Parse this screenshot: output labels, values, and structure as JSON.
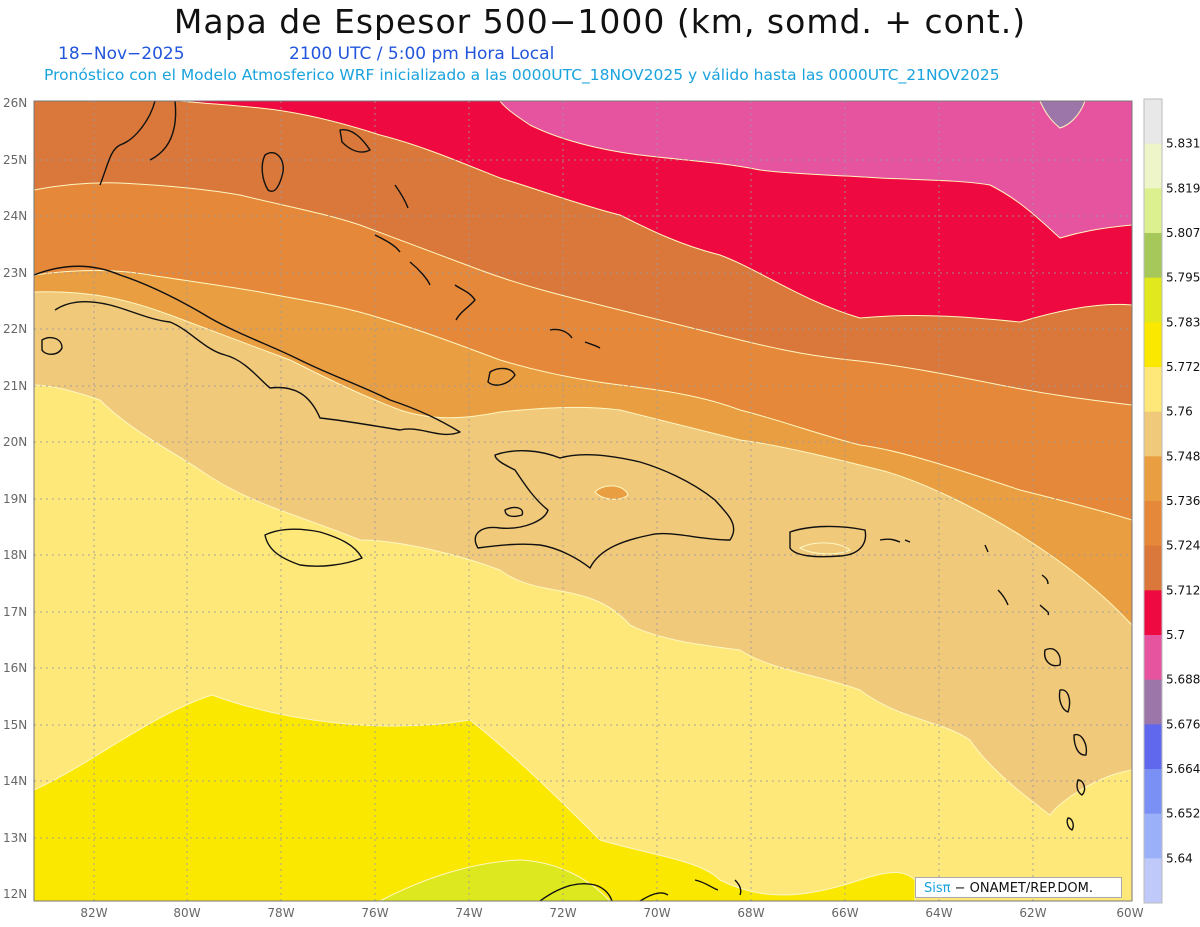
{
  "header": {
    "title": "Mapa de Espesor 500−1000 (km, somd. + cont.)",
    "date": "18−Nov−2025",
    "time": "2100 UTC / 5:00 pm Hora Local",
    "description": "Pronóstico con el Modelo Atmosferico WRF inicializado a las 0000UTC_18NOV2025 y válido hasta las  0000UTC_21NOV2025"
  },
  "axes": {
    "lat_labels": [
      "26N",
      "25N",
      "24N",
      "23N",
      "22N",
      "21N",
      "20N",
      "19N",
      "18N",
      "17N",
      "16N",
      "15N",
      "14N",
      "13N",
      "12N"
    ],
    "lon_labels": [
      "82W",
      "80W",
      "78W",
      "76W",
      "74W",
      "72W",
      "70W",
      "68W",
      "66W",
      "64W",
      "62W",
      "60W"
    ]
  },
  "legend": {
    "levels": [
      "5.831",
      "5.819",
      "5.807",
      "5.795",
      "5.783",
      "5.772",
      "5.76",
      "5.748",
      "5.736",
      "5.724",
      "5.712",
      "5.7",
      "5.688",
      "5.676",
      "5.664",
      "5.652",
      "5.64"
    ],
    "colors": [
      "#e8e8e8",
      "#eef5c8",
      "#ddf090",
      "#a6c85a",
      "#e2e81e",
      "#fae800",
      "#fee87a",
      "#f0c97a",
      "#ea9e42",
      "#e6883a",
      "#d9783a",
      "#ee0a40",
      "#e654a0",
      "#9c76a8",
      "#6068ee",
      "#7a90f4",
      "#9ab0f8",
      "#bfcafa"
    ]
  },
  "credit": {
    "brand": "Sisπ",
    "text": " − ONAMET/REP.DOM."
  },
  "colors": {
    "c_5640": "#fae800",
    "c_5652": "#dde81e",
    "c_5700": "#ee0a40",
    "c_5688": "#e654a0",
    "c_5676": "#9c76a8",
    "c_5712": "#d9783a",
    "c_5724": "#e6883a",
    "c_5736": "#ea9e42",
    "c_5748": "#f0c97a",
    "c_5760": "#fee87a"
  }
}
